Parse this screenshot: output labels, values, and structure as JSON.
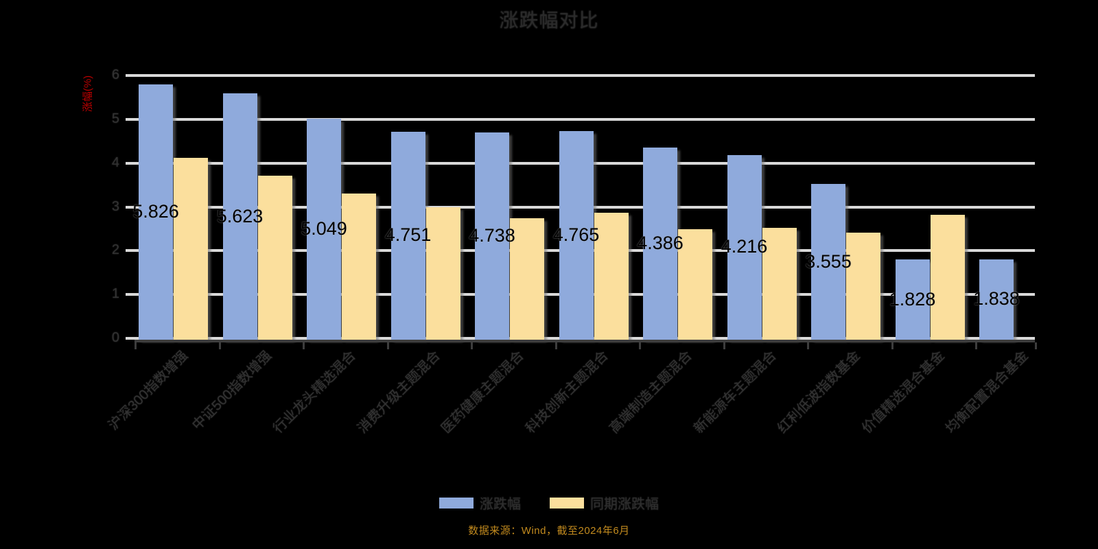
{
  "page": {
    "background": "#000000"
  },
  "chart_data": {
    "type": "bar",
    "title": "涨跌幅对比",
    "xlabel": "",
    "ylabel": "涨幅(%)",
    "y_axis": {
      "label": "涨幅(%)",
      "label_color": "#c00000",
      "min": 0,
      "max": 6,
      "step": 1,
      "ticks": [
        "0",
        "1",
        "2",
        "3",
        "4",
        "5",
        "6"
      ]
    },
    "grid": true,
    "legend_position": "bottom",
    "categories": [
      "沪深300指数增强",
      "中证500指数增强",
      "行业龙头精选混合",
      "消费升级主题混合",
      "医药健康主题混合",
      "科技创新主题混合",
      "高端制造主题混合",
      "新能源车主题混合",
      "红利低波指数基金",
      "价值精选混合基金",
      "均衡配置混合基金"
    ],
    "series": [
      {
        "name": "涨跌幅",
        "color": "#8faadc",
        "values": [
          5.826,
          5.623,
          5.049,
          4.751,
          4.738,
          4.765,
          4.386,
          4.216,
          3.555,
          1.828,
          1.838
        ],
        "data_labels": [
          "5.826",
          "5.623",
          "5.049",
          "4.751",
          "4.738",
          "4.765",
          "4.386",
          "4.216",
          "3.555",
          "1.828",
          "1.838"
        ],
        "data_label_position": "center"
      },
      {
        "name": "同期涨跌幅",
        "color": "#fbdf9d",
        "values": [
          4.15,
          3.75,
          3.34,
          3.03,
          2.77,
          2.9,
          2.52,
          2.56,
          2.45,
          2.85,
          0
        ],
        "data_labels": [],
        "data_label_position": "none"
      }
    ]
  },
  "caption": {
    "text": "数据来源：Wind，截至2024年6月",
    "color": "#c28a1e"
  },
  "colors": {
    "gridline": "#d9d9d9",
    "axis_dark": "#3d3d3d",
    "title_text": "#2b2b2b",
    "tick_text": "#333333",
    "data_label_text": "#000000"
  }
}
